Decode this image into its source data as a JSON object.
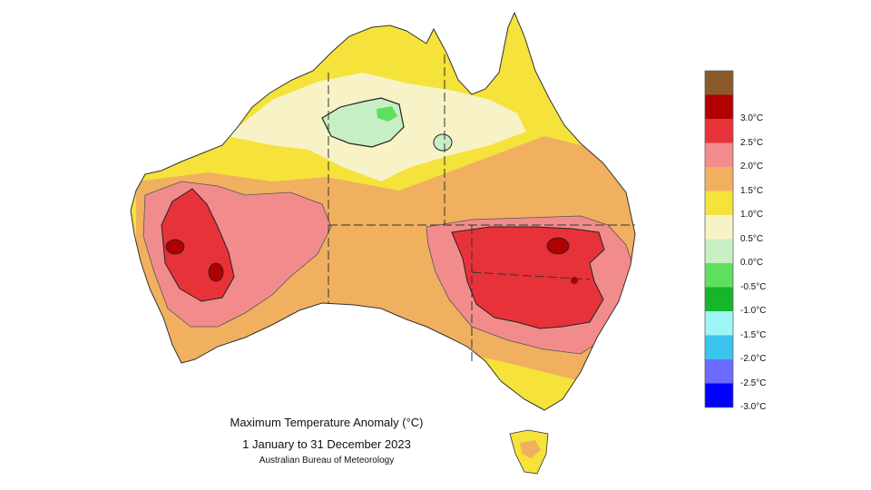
{
  "caption": {
    "title": "Maximum Temperature Anomaly (°C)",
    "period": "1 January to 31 December 2023",
    "source": "Australian Bureau of Meteorology"
  },
  "legend": {
    "bins": [
      {
        "color": "#8b5a2b",
        "label": ""
      },
      {
        "color": "#b00000",
        "label": "3.0°C"
      },
      {
        "color": "#e8323a",
        "label": "2.5°C"
      },
      {
        "color": "#f28c8c",
        "label": "2.0°C"
      },
      {
        "color": "#f0b060",
        "label": "1.5°C"
      },
      {
        "color": "#f5e23a",
        "label": "1.0°C"
      },
      {
        "color": "#f7f3c6",
        "label": "0.5°C"
      },
      {
        "color": "#c8efc4",
        "label": "0.0°C"
      },
      {
        "color": "#5ee05e",
        "label": "-0.5°C"
      },
      {
        "color": "#17b52c",
        "label": "-1.0°C"
      },
      {
        "color": "#9ef5f5",
        "label": "-1.5°C"
      },
      {
        "color": "#3bc4ee",
        "label": "-2.0°C"
      },
      {
        "color": "#6b6bff",
        "label": "-2.5°C"
      },
      {
        "color": "#0000ff",
        "label": "-3.0°C"
      }
    ]
  }
}
